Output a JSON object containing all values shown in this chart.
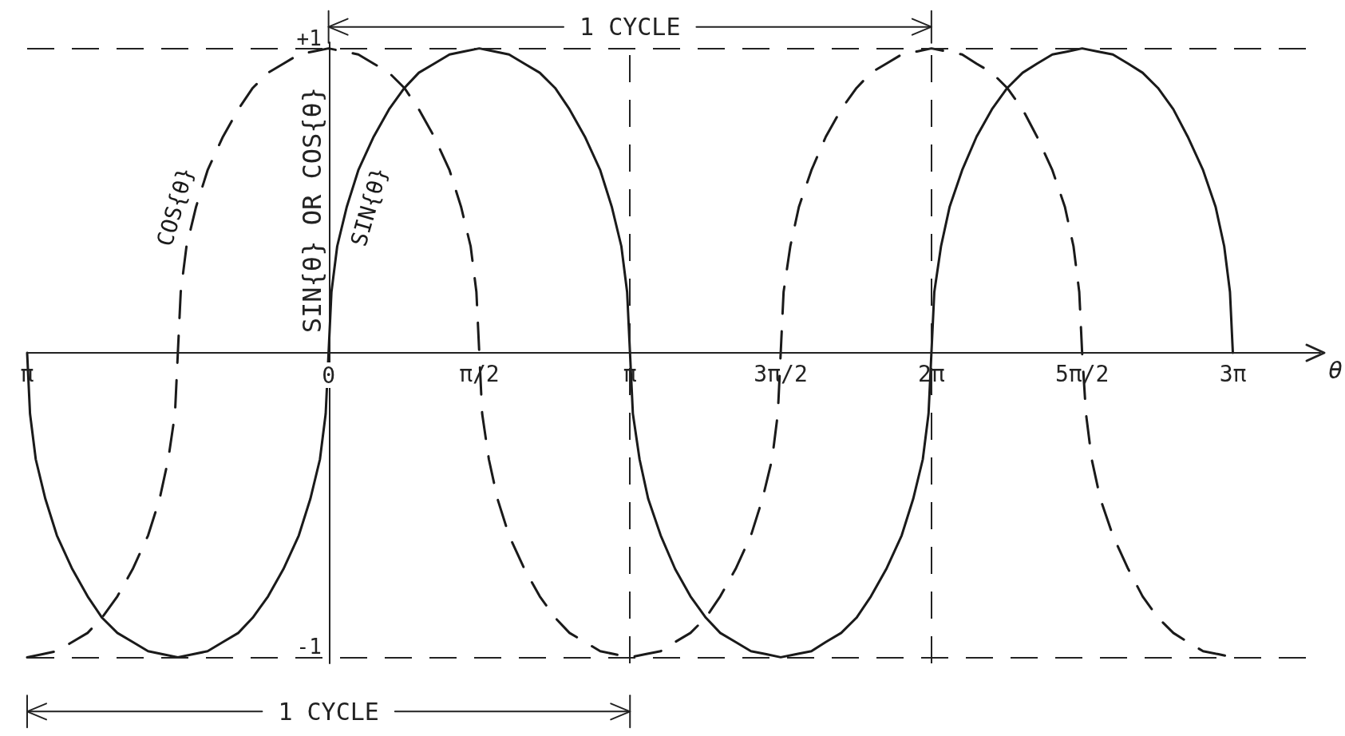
{
  "chart_data": {
    "type": "line",
    "xlabel": "θ",
    "ylabel": "SIN{θ} OR COS{θ}",
    "xlim": [
      -3.14,
      10.33
    ],
    "ylim": [
      -1.02,
      1.02
    ],
    "xticks": [
      {
        "value": -3.14,
        "label": "π"
      },
      0,
      {
        "value": 1.57,
        "label": "π/2"
      },
      {
        "value": 3.14,
        "label": "π"
      },
      {
        "value": 4.71,
        "label": "3π/2"
      },
      {
        "value": 6.28,
        "label": "2π"
      },
      {
        "value": 7.85,
        "label": "5π/2"
      },
      {
        "value": 9.42,
        "label": "3π"
      }
    ],
    "yticks": [
      {
        "value": 1,
        "label": "+1"
      },
      -1
    ],
    "series": [
      {
        "name": "SIN{θ}",
        "color": "#1a1a1a",
        "line_style": "solid",
        "x": [
          -3.14,
          -3.11,
          -3.05,
          -2.95,
          -2.83,
          -2.67,
          -2.51,
          -2.36,
          -2.2,
          -2.04,
          -1.88,
          -1.73,
          -1.57,
          -1.41,
          -1.26,
          -1.1,
          -0.94,
          -0.79,
          -0.63,
          -0.47,
          -0.31,
          -0.19,
          -0.09,
          -0.03,
          0,
          0.03,
          0.09,
          0.19,
          0.31,
          0.47,
          0.63,
          0.79,
          0.94,
          1.1,
          1.26,
          1.41,
          1.57,
          1.73,
          1.88,
          2.04,
          2.2,
          2.36,
          2.51,
          2.67,
          2.83,
          2.95,
          3.05,
          3.11,
          3.14,
          3.17,
          3.24,
          3.33,
          3.46,
          3.61,
          3.77,
          3.93,
          4.08,
          4.24,
          4.4,
          4.56,
          4.71,
          4.87,
          5.03,
          5.18,
          5.34,
          5.5,
          5.65,
          5.81,
          5.97,
          6.09,
          6.19,
          6.25,
          6.28,
          6.31,
          6.38,
          6.47,
          6.6,
          6.75,
          6.91,
          7.07,
          7.23,
          7.38,
          7.54,
          7.7,
          7.85,
          8.01,
          8.17,
          8.33,
          8.48,
          8.64,
          8.8,
          8.95,
          9.11,
          9.24,
          9.33,
          9.39,
          9.42
        ],
        "values": [
          0,
          -0.2,
          -0.35,
          -0.48,
          -0.6,
          -0.71,
          -0.8,
          -0.87,
          -0.92,
          -0.95,
          -0.98,
          -0.99,
          -1,
          -0.99,
          -0.98,
          -0.95,
          -0.92,
          -0.87,
          -0.8,
          -0.71,
          -0.6,
          -0.48,
          -0.35,
          -0.2,
          0,
          0.2,
          0.35,
          0.48,
          0.6,
          0.71,
          0.8,
          0.87,
          0.92,
          0.95,
          0.98,
          0.99,
          1,
          0.99,
          0.98,
          0.95,
          0.92,
          0.87,
          0.8,
          0.71,
          0.6,
          0.48,
          0.35,
          0.2,
          0,
          -0.2,
          -0.35,
          -0.48,
          -0.6,
          -0.71,
          -0.8,
          -0.87,
          -0.92,
          -0.95,
          -0.98,
          -0.99,
          -1,
          -0.99,
          -0.98,
          -0.95,
          -0.92,
          -0.87,
          -0.8,
          -0.71,
          -0.6,
          -0.48,
          -0.35,
          -0.2,
          0,
          0.2,
          0.35,
          0.48,
          0.6,
          0.71,
          0.8,
          0.87,
          0.92,
          0.95,
          0.98,
          0.99,
          1,
          0.99,
          0.98,
          0.95,
          0.92,
          0.87,
          0.8,
          0.71,
          0.6,
          0.48,
          0.35,
          0.2,
          0
        ]
      },
      {
        "name": "COS{θ}",
        "color": "#1a1a1a",
        "line_style": "dashed",
        "x": [
          -3.14,
          -2.98,
          -2.83,
          -2.67,
          -2.51,
          -2.36,
          -2.2,
          -2.04,
          -1.88,
          -1.76,
          -1.67,
          -1.6,
          -1.57,
          -1.54,
          -1.48,
          -1.38,
          -1.26,
          -1.1,
          -0.94,
          -0.79,
          -0.63,
          -0.47,
          -0.31,
          -0.16,
          0,
          0.16,
          0.31,
          0.47,
          0.63,
          0.79,
          0.94,
          1.1,
          1.26,
          1.38,
          1.48,
          1.54,
          1.57,
          1.6,
          1.67,
          1.76,
          1.88,
          2.04,
          2.2,
          2.36,
          2.51,
          2.67,
          2.83,
          2.98,
          3.14,
          3.3,
          3.46,
          3.61,
          3.77,
          3.93,
          4.08,
          4.24,
          4.4,
          4.52,
          4.62,
          4.68,
          4.71,
          4.74,
          4.81,
          4.9,
          5.03,
          5.18,
          5.34,
          5.5,
          5.65,
          5.81,
          5.97,
          6.13,
          6.28,
          6.44,
          6.6,
          6.75,
          6.91,
          7.07,
          7.23,
          7.38,
          7.54,
          7.67,
          7.76,
          7.82,
          7.85,
          7.89,
          7.95,
          8.04,
          8.17,
          8.33,
          8.48,
          8.64,
          8.8,
          8.95,
          9.11,
          9.27,
          9.42
        ],
        "values": [
          -1,
          -0.99,
          -0.98,
          -0.95,
          -0.92,
          -0.87,
          -0.8,
          -0.71,
          -0.6,
          -0.48,
          -0.35,
          -0.2,
          0,
          0.2,
          0.35,
          0.48,
          0.6,
          0.71,
          0.8,
          0.87,
          0.92,
          0.95,
          0.98,
          0.99,
          1,
          0.99,
          0.98,
          0.95,
          0.92,
          0.87,
          0.8,
          0.71,
          0.6,
          0.48,
          0.35,
          0.2,
          0,
          -0.2,
          -0.35,
          -0.48,
          -0.6,
          -0.71,
          -0.8,
          -0.87,
          -0.92,
          -0.95,
          -0.98,
          -0.99,
          -1,
          -0.99,
          -0.98,
          -0.95,
          -0.92,
          -0.87,
          -0.8,
          -0.71,
          -0.6,
          -0.48,
          -0.35,
          -0.2,
          0,
          0.2,
          0.35,
          0.48,
          0.6,
          0.71,
          0.8,
          0.87,
          0.92,
          0.95,
          0.98,
          0.99,
          1,
          0.99,
          0.98,
          0.95,
          0.92,
          0.87,
          0.8,
          0.71,
          0.6,
          0.48,
          0.35,
          0.2,
          0,
          -0.2,
          -0.35,
          -0.48,
          -0.6,
          -0.71,
          -0.8,
          -0.87,
          -0.92,
          -0.95,
          -0.98,
          -0.99,
          -1
        ]
      }
    ],
    "ref_lines": [
      {
        "axis": "y",
        "value": 1,
        "line_style": "dashed"
      },
      {
        "axis": "y",
        "value": -1,
        "line_style": "dashed"
      },
      {
        "axis": "x",
        "value": 3.14,
        "line_style": "dashed"
      },
      {
        "axis": "x",
        "value": 6.28,
        "line_style": "dashed"
      }
    ],
    "annotations": [
      {
        "text": "1 CYCLE",
        "x": 3.14,
        "y": 1
      },
      {
        "text": "1 CYCLE",
        "x": 0,
        "y": -1
      }
    ],
    "grid": false,
    "legend": false,
    "marker": "none"
  }
}
